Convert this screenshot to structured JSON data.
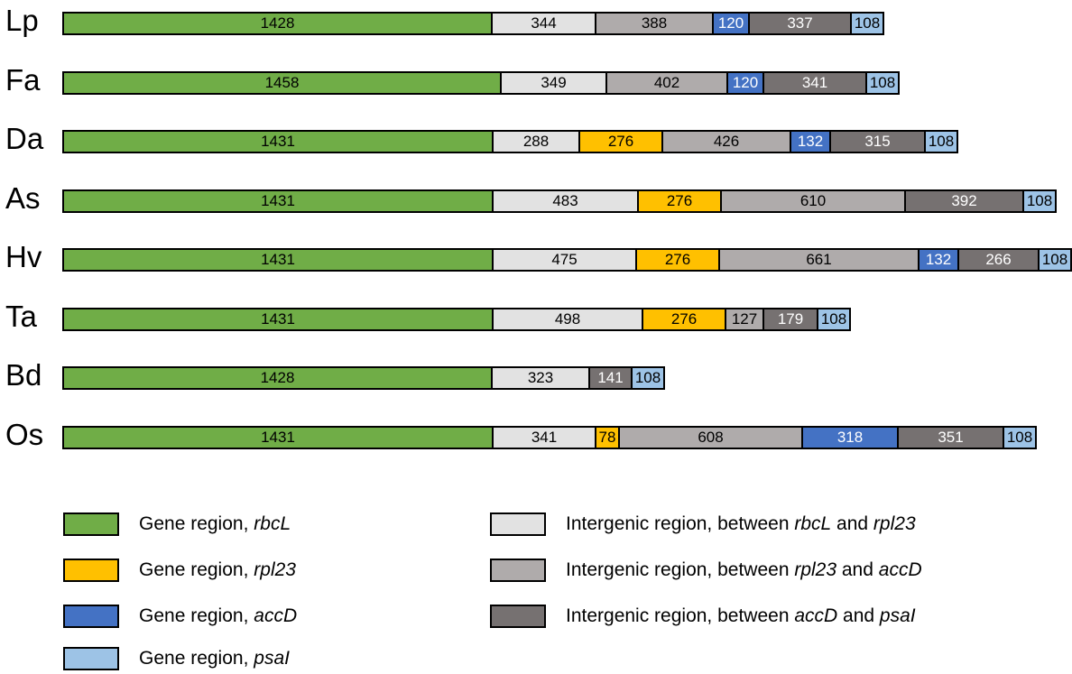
{
  "colors": {
    "gene_rbcL": "#70ad47",
    "gene_rpl23": "#ffc000",
    "gene_accD": "#4472c4",
    "gene_psaI": "#9dc3e6",
    "ig_rbcL_rpl23": "#e2e2e2",
    "ig_rpl23_accD": "#afabab",
    "ig_accD_psaI": "#767171"
  },
  "tracks": [
    {
      "label": "Lp",
      "segments": [
        {
          "type": "gene_rbcL",
          "value": "1428"
        },
        {
          "type": "ig_rbcL_rpl23",
          "value": "344"
        },
        {
          "type": "ig_rpl23_accD",
          "value": "388"
        },
        {
          "type": "gene_accD",
          "value": "120"
        },
        {
          "type": "ig_accD_psaI",
          "value": "337"
        },
        {
          "type": "gene_psaI",
          "value": "108"
        }
      ]
    },
    {
      "label": "Fa",
      "segments": [
        {
          "type": "gene_rbcL",
          "value": "1458"
        },
        {
          "type": "ig_rbcL_rpl23",
          "value": "349"
        },
        {
          "type": "ig_rpl23_accD",
          "value": "402"
        },
        {
          "type": "gene_accD",
          "value": "120"
        },
        {
          "type": "ig_accD_psaI",
          "value": "341"
        },
        {
          "type": "gene_psaI",
          "value": "108"
        }
      ]
    },
    {
      "label": "Da",
      "segments": [
        {
          "type": "gene_rbcL",
          "value": "1431"
        },
        {
          "type": "ig_rbcL_rpl23",
          "value": "288"
        },
        {
          "type": "gene_rpl23",
          "value": "276"
        },
        {
          "type": "ig_rpl23_accD",
          "value": "426"
        },
        {
          "type": "gene_accD",
          "value": "132"
        },
        {
          "type": "ig_accD_psaI",
          "value": "315"
        },
        {
          "type": "gene_psaI",
          "value": "108"
        }
      ]
    },
    {
      "label": "As",
      "segments": [
        {
          "type": "gene_rbcL",
          "value": "1431"
        },
        {
          "type": "ig_rbcL_rpl23",
          "value": "483"
        },
        {
          "type": "gene_rpl23",
          "value": "276"
        },
        {
          "type": "ig_rpl23_accD",
          "value": "610"
        },
        {
          "type": "ig_accD_psaI",
          "value": "392"
        },
        {
          "type": "gene_psaI",
          "value": "108"
        }
      ]
    },
    {
      "label": "Hv",
      "segments": [
        {
          "type": "gene_rbcL",
          "value": "1431"
        },
        {
          "type": "ig_rbcL_rpl23",
          "value": "475"
        },
        {
          "type": "gene_rpl23",
          "value": "276"
        },
        {
          "type": "ig_rpl23_accD",
          "value": "661"
        },
        {
          "type": "gene_accD",
          "value": "132"
        },
        {
          "type": "ig_accD_psaI",
          "value": "266"
        },
        {
          "type": "gene_psaI",
          "value": "108"
        }
      ]
    },
    {
      "label": "Ta",
      "segments": [
        {
          "type": "gene_rbcL",
          "value": "1431"
        },
        {
          "type": "ig_rbcL_rpl23",
          "value": "498"
        },
        {
          "type": "gene_rpl23",
          "value": "276"
        },
        {
          "type": "ig_rpl23_accD",
          "value": "127"
        },
        {
          "type": "ig_accD_psaI",
          "value": "179"
        },
        {
          "type": "gene_psaI",
          "value": "108"
        }
      ]
    },
    {
      "label": "Bd",
      "segments": [
        {
          "type": "gene_rbcL",
          "value": "1428"
        },
        {
          "type": "ig_rbcL_rpl23",
          "value": "323"
        },
        {
          "type": "ig_accD_psaI",
          "value": "141"
        },
        {
          "type": "gene_psaI",
          "value": "108"
        }
      ]
    },
    {
      "label": "Os",
      "segments": [
        {
          "type": "gene_rbcL",
          "value": "1431"
        },
        {
          "type": "ig_rbcL_rpl23",
          "value": "341"
        },
        {
          "type": "gene_rpl23",
          "value": "78"
        },
        {
          "type": "ig_rpl23_accD",
          "value": "608"
        },
        {
          "type": "gene_accD",
          "value": "318"
        },
        {
          "type": "ig_accD_psaI",
          "value": "351"
        },
        {
          "type": "gene_psaI",
          "value": "108"
        }
      ]
    }
  ],
  "legend": [
    {
      "type": "gene_rbcL",
      "prefix": "Gene region, ",
      "gene1": "rbcL",
      "mid": "",
      "gene2": ""
    },
    {
      "type": "gene_rpl23",
      "prefix": "Gene region, ",
      "gene1": "rpl23",
      "mid": "",
      "gene2": ""
    },
    {
      "type": "gene_accD",
      "prefix": "Gene region, ",
      "gene1": "accD",
      "mid": "",
      "gene2": ""
    },
    {
      "type": "gene_psaI",
      "prefix": "Gene region, ",
      "gene1": "psaI",
      "mid": "",
      "gene2": ""
    },
    {
      "type": "ig_rbcL_rpl23",
      "prefix": "Intergenic region, between ",
      "gene1": "rbcL",
      "mid": " and ",
      "gene2": "rpl23"
    },
    {
      "type": "ig_rpl23_accD",
      "prefix": "Intergenic region, between ",
      "gene1": "rpl23",
      "mid": " and ",
      "gene2": "accD"
    },
    {
      "type": "ig_accD_psaI",
      "prefix": "Intergenic region, between ",
      "gene1": "accD",
      "mid": " and ",
      "gene2": "psaI"
    }
  ]
}
